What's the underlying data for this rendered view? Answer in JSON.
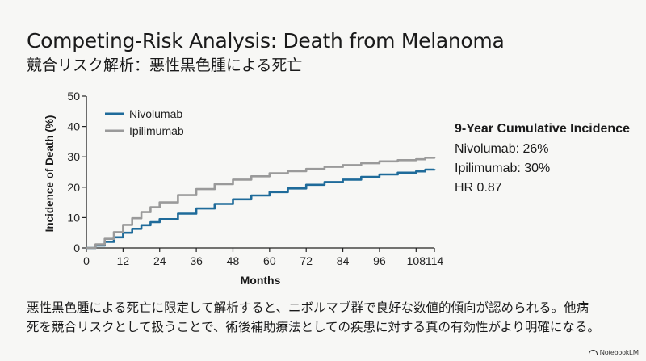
{
  "title": "Competing-Risk Analysis: Death from Melanoma",
  "subtitle": "競合リスク解析：悪性黒色腫による死亡",
  "chart_data": {
    "type": "line",
    "xlabel": "Months",
    "ylabel": "Incidence of Death (%)",
    "xlim": [
      0,
      114
    ],
    "ylim": [
      0,
      50
    ],
    "xticks": [
      0,
      12,
      24,
      36,
      48,
      60,
      72,
      84,
      96,
      108,
      114
    ],
    "yticks": [
      0,
      10,
      20,
      30,
      40,
      50
    ],
    "grid": false,
    "legend_position": "top-left",
    "series": [
      {
        "name": "Nivolumab",
        "color": "#1f6b9a",
        "x": [
          0,
          3,
          6,
          9,
          12,
          15,
          18,
          21,
          24,
          30,
          36,
          42,
          48,
          54,
          60,
          66,
          72,
          78,
          84,
          90,
          96,
          102,
          108,
          111,
          114
        ],
        "y": [
          0,
          0.8,
          2,
          3.5,
          5,
          6.3,
          7.5,
          8.5,
          9.5,
          11.3,
          13,
          14.5,
          16,
          17.3,
          18.4,
          19.6,
          20.8,
          21.7,
          22.5,
          23.4,
          24.2,
          24.8,
          25.2,
          25.8,
          26
        ]
      },
      {
        "name": "Ipilimumab",
        "color": "#9a9a9a",
        "x": [
          0,
          3,
          6,
          9,
          12,
          15,
          18,
          21,
          24,
          30,
          36,
          42,
          48,
          54,
          60,
          66,
          72,
          78,
          84,
          90,
          96,
          102,
          108,
          111,
          114
        ],
        "y": [
          0,
          1.2,
          3,
          5.2,
          7.6,
          9.8,
          11.8,
          13.4,
          15,
          17.4,
          19.4,
          21,
          22.5,
          23.6,
          24.6,
          25.3,
          26,
          26.7,
          27.3,
          27.9,
          28.5,
          28.9,
          29.2,
          29.7,
          30
        ]
      }
    ]
  },
  "stats": {
    "title": "9-Year Cumulative Incidence",
    "lines": [
      "Nivolumab: 26%",
      "Ipilimumab: 30%",
      "HR 0.87"
    ]
  },
  "caption": {
    "line1": "悪性黒色腫による死亡に限定して解析すると、ニボルマブ群で良好な数値的傾向が認められる。他病",
    "line2": "死を競合リスクとして扱うことで、術後補助療法としての疾患に対する真の有効性がより明確になる。"
  },
  "brand": {
    "label": "NotebookLM",
    "icon": "notebooklm-icon"
  }
}
